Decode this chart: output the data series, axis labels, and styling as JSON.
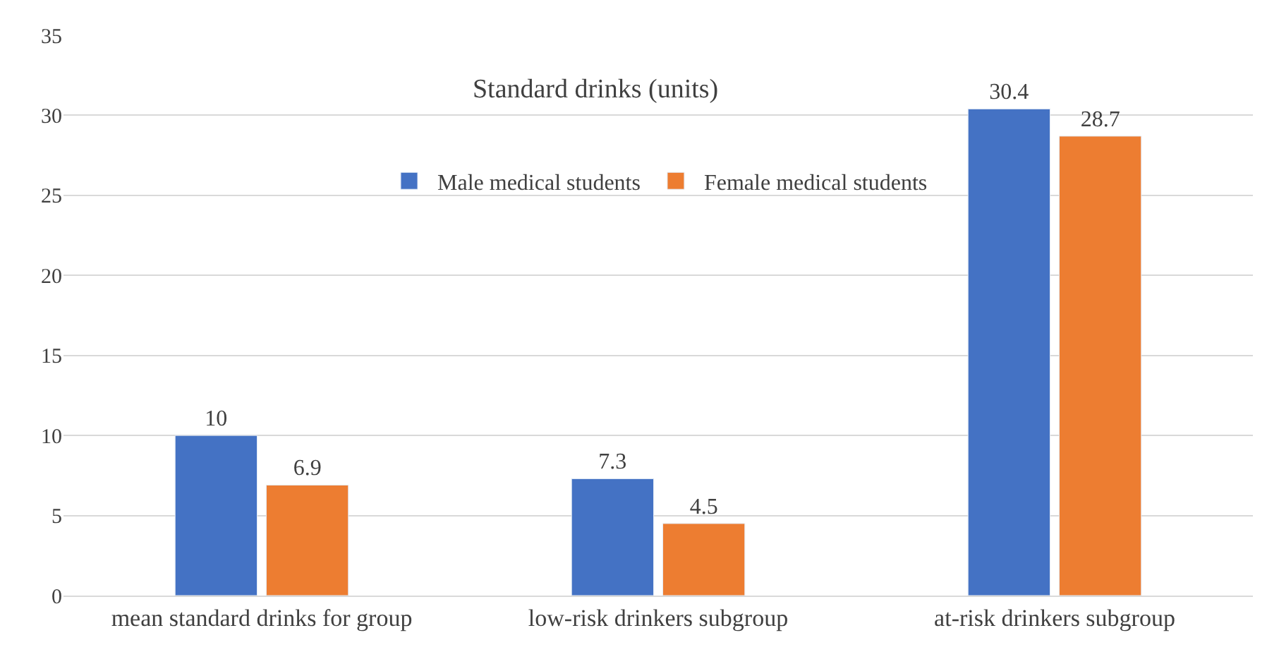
{
  "chart_data": {
    "type": "bar",
    "title": "Standard drinks (units)",
    "categories": [
      "mean standard drinks for group",
      "low-risk drinkers subgroup",
      "at-risk drinkers subgroup"
    ],
    "series": [
      {
        "name": "Male medical students",
        "color": "#4472c4",
        "values": [
          10,
          7.3,
          30.4
        ]
      },
      {
        "name": "Female medical students",
        "color": "#ed7d31",
        "values": [
          6.9,
          4.5,
          28.7
        ]
      }
    ],
    "ylim": [
      0,
      35
    ],
    "yticks": [
      0,
      5,
      10,
      15,
      20,
      25,
      30,
      35
    ],
    "grid": "y",
    "legend": "top",
    "data_labels": true
  }
}
